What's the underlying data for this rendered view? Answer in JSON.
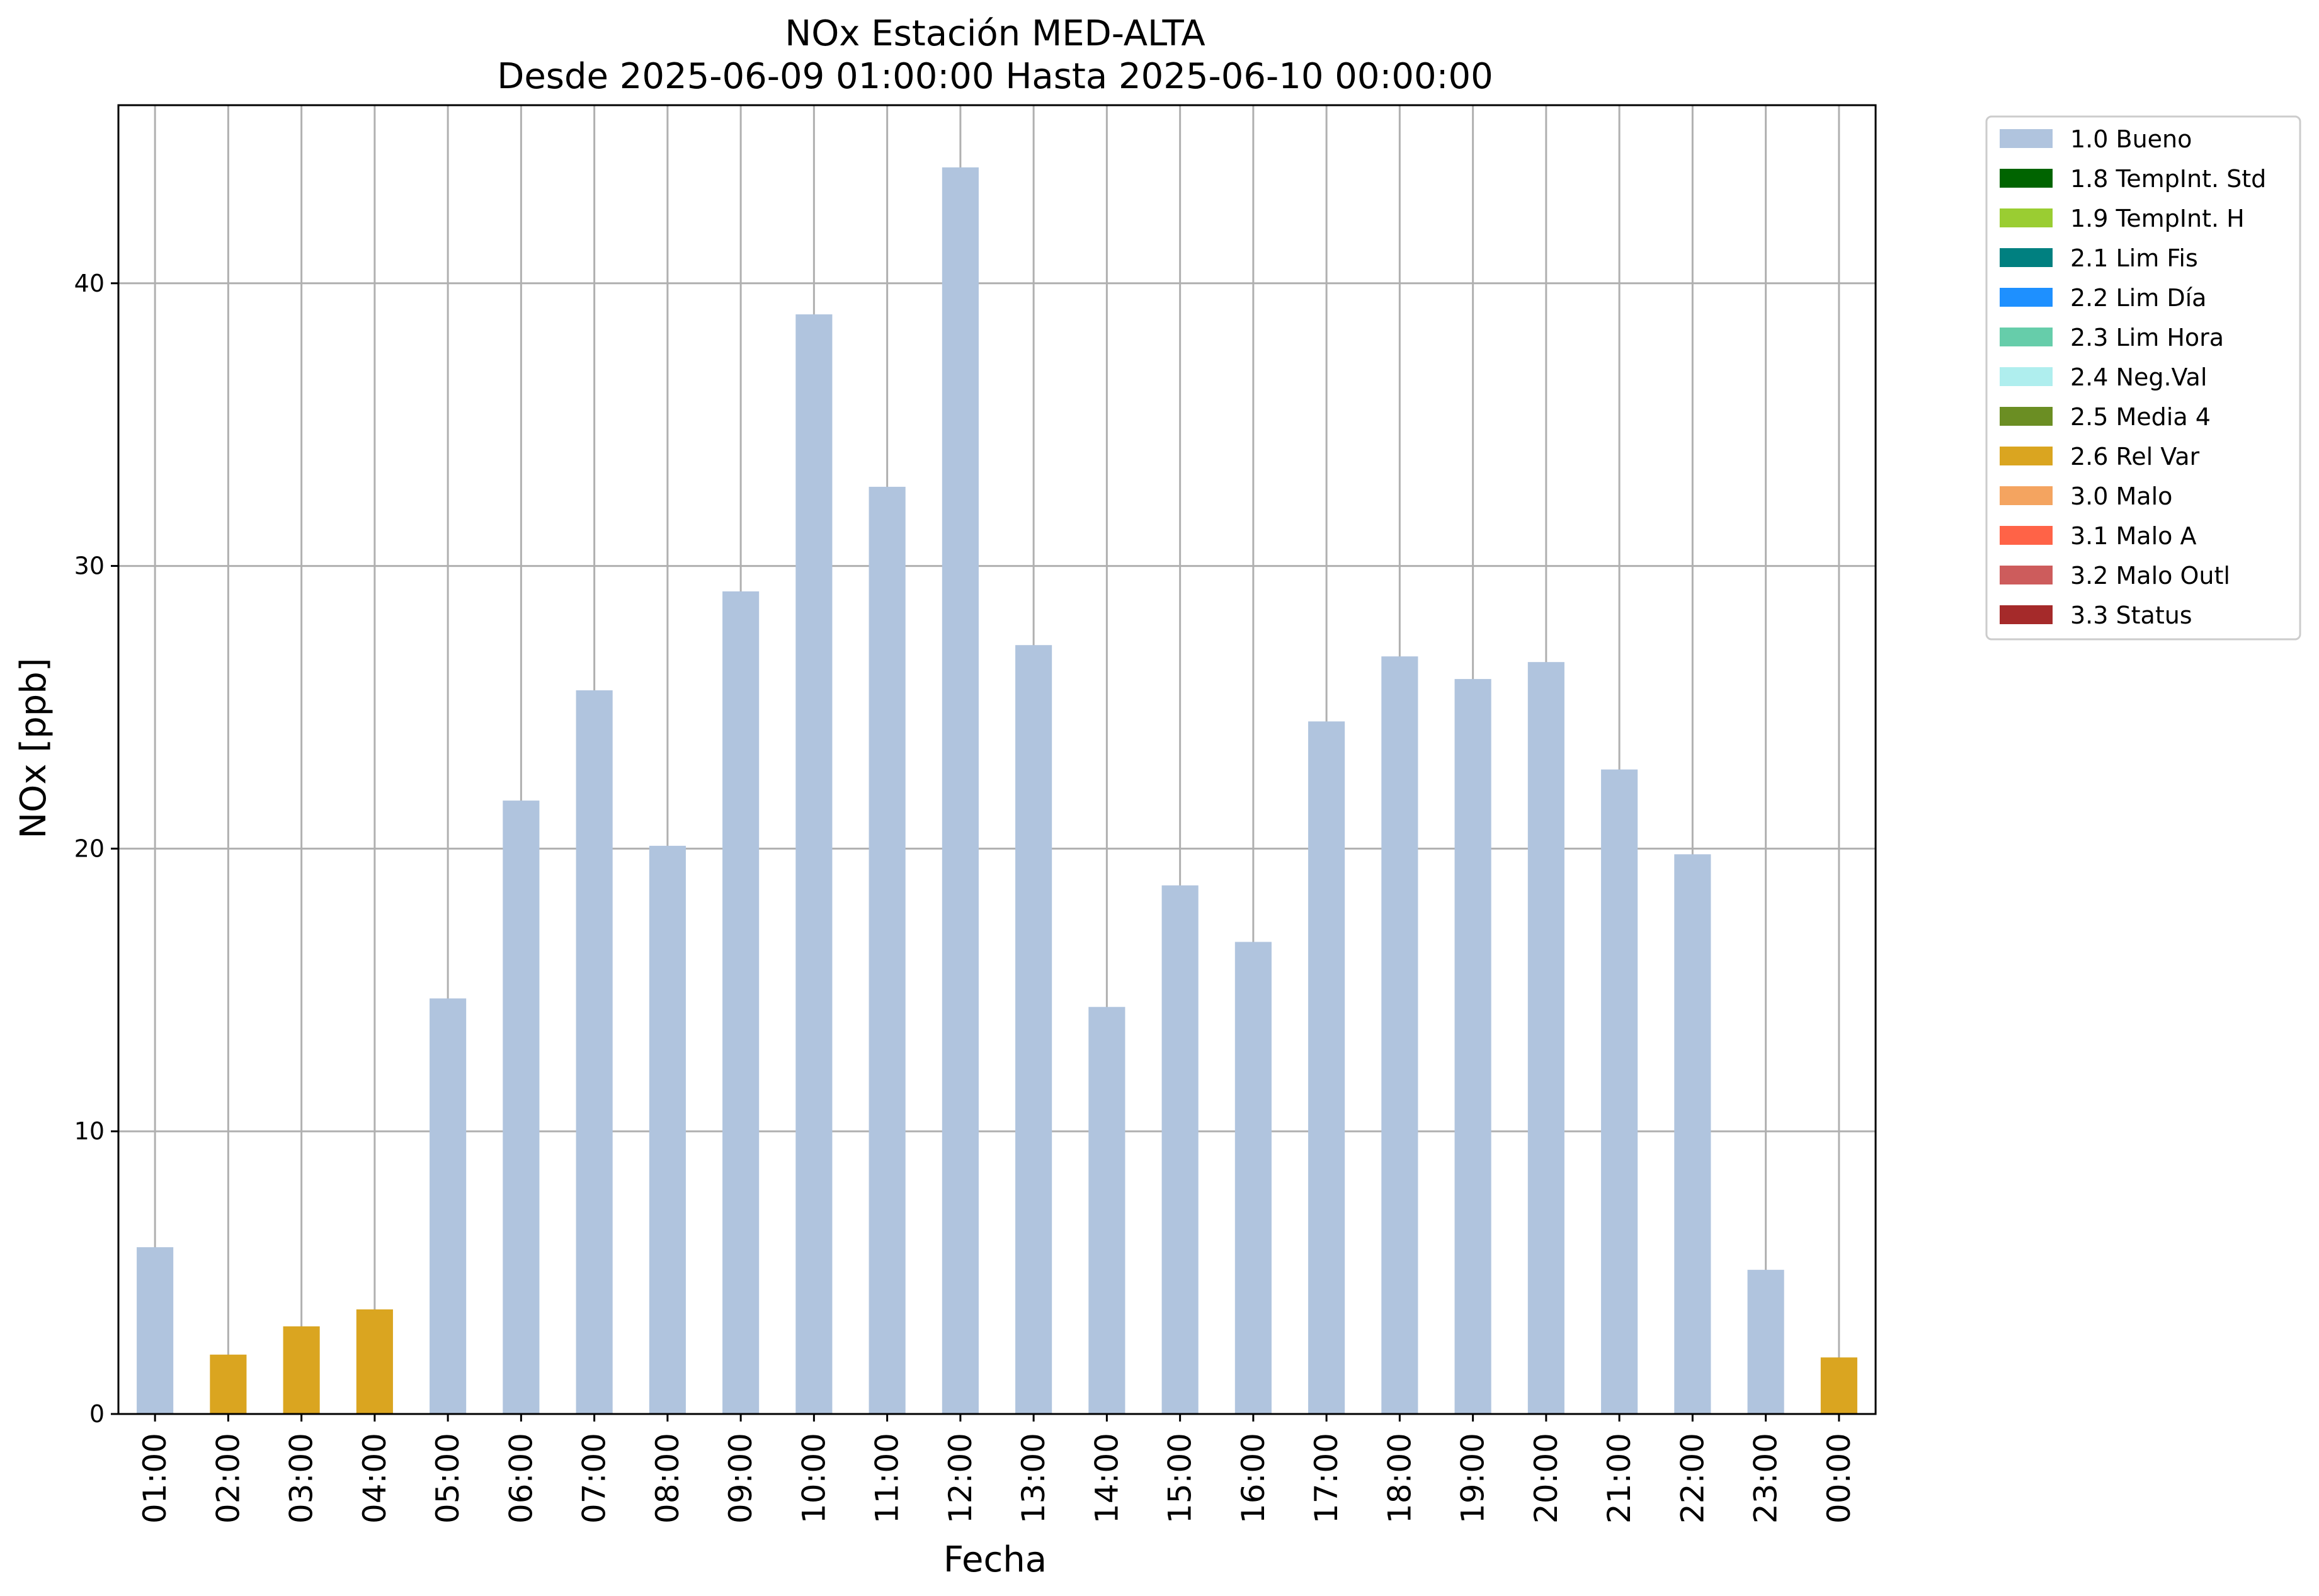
{
  "chart_data": {
    "type": "bar",
    "title": "NOx Estación MED-ALTA",
    "subtitle": "Desde 2025-06-09 01:00:00 Hasta 2025-06-10 00:00:00",
    "xlabel": "Fecha",
    "ylabel": "NOx [ppb]",
    "ylim": [
      0,
      46.3
    ],
    "yticks": [
      0,
      10,
      20,
      30,
      40
    ],
    "grid": true,
    "legend_position": "outside-top-right",
    "categories": [
      "01:00",
      "02:00",
      "03:00",
      "04:00",
      "05:00",
      "06:00",
      "07:00",
      "08:00",
      "09:00",
      "10:00",
      "11:00",
      "12:00",
      "13:00",
      "14:00",
      "15:00",
      "16:00",
      "17:00",
      "18:00",
      "19:00",
      "20:00",
      "21:00",
      "22:00",
      "23:00",
      "00:00"
    ],
    "values": [
      5.9,
      2.1,
      3.1,
      3.7,
      14.7,
      21.7,
      25.6,
      20.1,
      29.1,
      38.9,
      32.8,
      44.1,
      27.2,
      14.4,
      18.7,
      16.7,
      24.5,
      26.8,
      26.0,
      26.6,
      22.8,
      19.8,
      5.1,
      2.0
    ],
    "flags": [
      "1.0 Bueno",
      "2.6 Rel Var",
      "2.6 Rel Var",
      "2.6 Rel Var",
      "1.0 Bueno",
      "1.0 Bueno",
      "1.0 Bueno",
      "1.0 Bueno",
      "1.0 Bueno",
      "1.0 Bueno",
      "1.0 Bueno",
      "1.0 Bueno",
      "1.0 Bueno",
      "1.0 Bueno",
      "1.0 Bueno",
      "1.0 Bueno",
      "1.0 Bueno",
      "1.0 Bueno",
      "1.0 Bueno",
      "1.0 Bueno",
      "1.0 Bueno",
      "1.0 Bueno",
      "1.0 Bueno",
      "2.6 Rel Var"
    ],
    "legend": [
      {
        "name": "1.0 Bueno",
        "color": "#b0c4de"
      },
      {
        "name": "1.8 TempInt. Std",
        "color": "#006400"
      },
      {
        "name": "1.9 TempInt. H",
        "color": "#9acd32"
      },
      {
        "name": "2.1 Lim Fis",
        "color": "#008080"
      },
      {
        "name": "2.2 Lim Día",
        "color": "#1e90ff"
      },
      {
        "name": "2.3 Lim Hora",
        "color": "#66cdaa"
      },
      {
        "name": "2.4 Neg.Val",
        "color": "#afeeee"
      },
      {
        "name": "2.5 Media 4",
        "color": "#6b8e23"
      },
      {
        "name": "2.6 Rel Var",
        "color": "#daa520"
      },
      {
        "name": "3.0 Malo",
        "color": "#f4a460"
      },
      {
        "name": "3.1 Malo A",
        "color": "#ff6347"
      },
      {
        "name": "3.2 Malo Outl",
        "color": "#cd5c5c"
      },
      {
        "name": "3.3 Status",
        "color": "#a52a2a"
      }
    ]
  }
}
